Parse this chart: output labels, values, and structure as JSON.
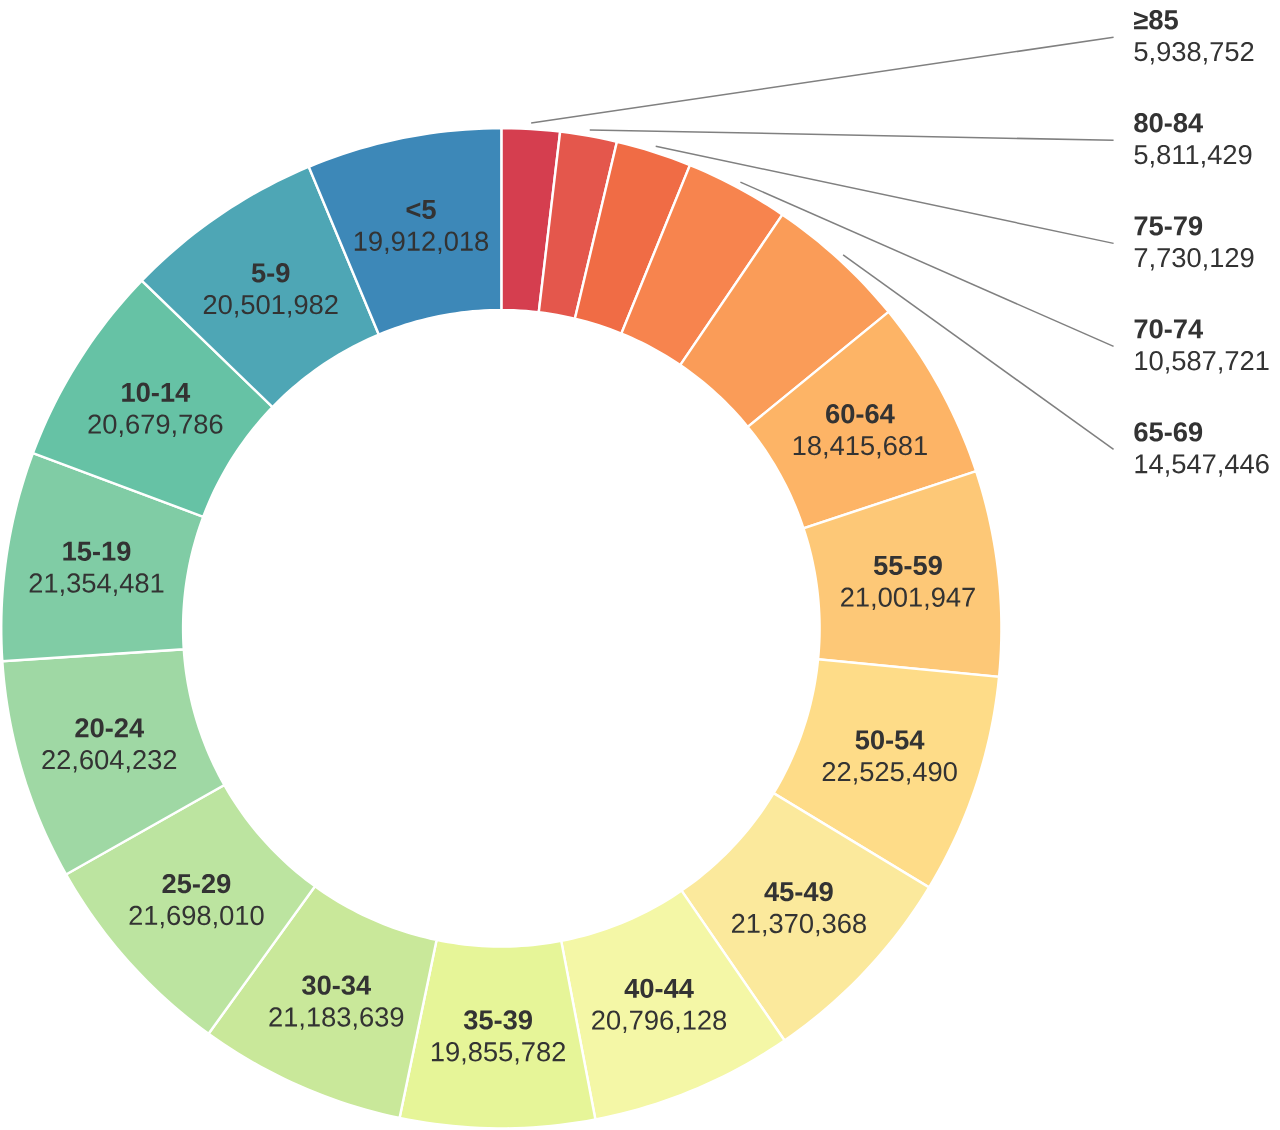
{
  "chart_data": {
    "type": "donut",
    "categories": [
      "≥85",
      "80-84",
      "75-79",
      "70-74",
      "65-69",
      "60-64",
      "55-59",
      "50-54",
      "45-49",
      "40-44",
      "35-39",
      "30-34",
      "25-29",
      "20-24",
      "15-19",
      "10-14",
      "5-9",
      "<5"
    ],
    "values": [
      5938752,
      5811429,
      7730129,
      10587721,
      14547446,
      18415681,
      21001947,
      22525490,
      21370368,
      20796128,
      19855782,
      21183639,
      21698010,
      22604232,
      21354481,
      20679786,
      20501982,
      19912018
    ],
    "value_labels": [
      "5,938,752",
      "5,811,429",
      "7,730,129",
      "10,587,721",
      "14,547,446",
      "18,415,681",
      "21,001,947",
      "22,525,490",
      "21,370,368",
      "20,796,128",
      "19,855,782",
      "21,183,639",
      "21,698,010",
      "22,604,232",
      "21,354,481",
      "20,679,786",
      "20,501,982",
      "19,912,018"
    ],
    "colors": [
      "#d53e4f",
      "#e4574c",
      "#f06c45",
      "#f7844e",
      "#fa9c58",
      "#fdb466",
      "#fdc877",
      "#fedc88",
      "#fbe99c",
      "#f4f7a6",
      "#e6f598",
      "#c9e89a",
      "#bce4a0",
      "#9fd8a4",
      "#80cca5",
      "#66c2a5",
      "#4ea6b5",
      "#3d88b8"
    ]
  }
}
